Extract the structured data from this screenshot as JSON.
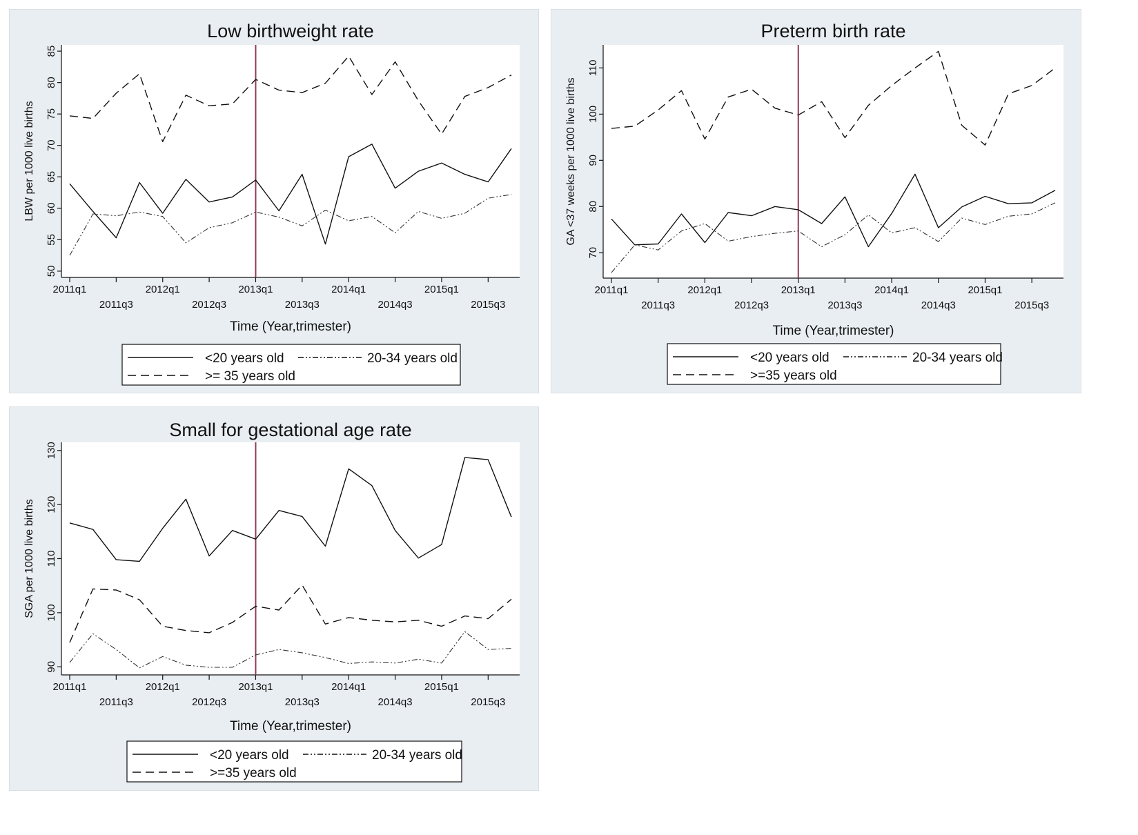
{
  "chart_data": [
    {
      "type": "line",
      "title": "Low birthweight rate",
      "xlabel": "Time (Year,trimester)",
      "ylabel": "LBW per 1000 live births",
      "xticks": [
        "2011q1",
        "2011q3",
        "2012q1",
        "2012q3",
        "2013q1",
        "2013q3",
        "2014q1",
        "2014q3",
        "2015q1",
        "2015q3"
      ],
      "yticks": [
        50,
        55,
        60,
        65,
        70,
        75,
        80,
        85
      ],
      "ylim": [
        49,
        86
      ],
      "intervention_x": 8,
      "x": [
        0,
        1,
        2,
        3,
        4,
        5,
        6,
        7,
        8,
        9,
        10,
        11,
        12,
        13,
        14,
        15,
        16,
        17,
        18,
        19
      ],
      "series": [
        {
          "name": "<20 years old",
          "style": "solid",
          "values": [
            63.9,
            59.5,
            55.3,
            64.1,
            59.2,
            64.6,
            61.0,
            61.8,
            64.5,
            59.6,
            65.4,
            54.3,
            68.2,
            70.2,
            63.2,
            65.9,
            67.2,
            65.4,
            64.2,
            69.5
          ]
        },
        {
          "name": "20-34 years old",
          "style": "dashdot",
          "values": [
            52.5,
            59.1,
            58.8,
            59.4,
            58.7,
            54.5,
            56.9,
            57.7,
            59.4,
            58.6,
            57.2,
            59.7,
            58.0,
            58.7,
            56.1,
            59.5,
            58.4,
            59.2,
            61.6,
            62.2
          ]
        },
        {
          "name": ">= 35 years old",
          "style": "dashed",
          "values": [
            74.7,
            74.3,
            78.3,
            81.4,
            70.6,
            78.0,
            76.3,
            76.6,
            80.5,
            78.8,
            78.4,
            79.9,
            84.2,
            78.1,
            83.3,
            77.1,
            71.8,
            77.8,
            79.2,
            81.2
          ]
        }
      ],
      "legend": {
        "entries": [
          "<20 years old",
          "20-34 years old",
          ">= 35 years old"
        ],
        "placement": "bottom"
      }
    },
    {
      "type": "line",
      "title": "Preterm birth rate",
      "xlabel": "Time (Year,trimester)",
      "ylabel": "GA <37 weeks per 1000 live births",
      "xticks": [
        "2011q1",
        "2011q3",
        "2012q1",
        "2012q3",
        "2013q1",
        "2013q3",
        "2014q1",
        "2014q3",
        "2015q1",
        "2015q3"
      ],
      "yticks": [
        70,
        80,
        90,
        100,
        110
      ],
      "ylim": [
        64.5,
        115
      ],
      "intervention_x": 8,
      "x": [
        0,
        1,
        2,
        3,
        4,
        5,
        6,
        7,
        8,
        9,
        10,
        11,
        12,
        13,
        14,
        15,
        16,
        17,
        18,
        19
      ],
      "series": [
        {
          "name": "<20 years old",
          "style": "solid",
          "values": [
            77.3,
            71.7,
            71.9,
            78.4,
            72.2,
            78.7,
            78.0,
            80.0,
            79.3,
            76.3,
            82.1,
            71.3,
            78.5,
            87.0,
            75.4,
            79.9,
            82.2,
            80.6,
            80.8,
            83.5
          ]
        },
        {
          "name": "20-34 years old",
          "style": "dashdot",
          "values": [
            65.7,
            71.7,
            70.6,
            74.7,
            76.3,
            72.5,
            73.5,
            74.2,
            74.7,
            71.3,
            73.9,
            78.2,
            74.3,
            75.4,
            72.4,
            77.5,
            76.1,
            77.9,
            78.4,
            80.8
          ]
        },
        {
          "name": ">=35 years old",
          "style": "dashed",
          "values": [
            96.9,
            97.4,
            100.9,
            105.1,
            94.6,
            103.7,
            105.4,
            101.3,
            99.8,
            102.7,
            94.9,
            101.9,
            106.2,
            110.0,
            113.6,
            97.6,
            93.3,
            104.4,
            106.2,
            110.0
          ]
        }
      ],
      "legend": {
        "entries": [
          "<20 years old",
          "20-34 years old",
          ">=35 years old"
        ],
        "placement": "bottom"
      }
    },
    {
      "type": "line",
      "title": "Small for gestational age rate",
      "xlabel": "Time (Year,trimester)",
      "ylabel": "SGA per 1000 live births",
      "xticks": [
        "2011q1",
        "2011q3",
        "2012q1",
        "2012q3",
        "2013q1",
        "2013q3",
        "2014q1",
        "2014q3",
        "2015q1",
        "2015q3"
      ],
      "yticks": [
        90,
        100,
        110,
        120,
        130
      ],
      "ylim": [
        88.5,
        131.5
      ],
      "intervention_x": 8,
      "x": [
        0,
        1,
        2,
        3,
        4,
        5,
        6,
        7,
        8,
        9,
        10,
        11,
        12,
        13,
        14,
        15,
        16,
        17,
        18,
        19
      ],
      "series": [
        {
          "name": "<20 years old",
          "style": "solid",
          "values": [
            116.6,
            115.4,
            109.8,
            109.5,
            115.6,
            121.0,
            110.5,
            115.2,
            113.6,
            118.9,
            117.8,
            112.3,
            126.6,
            123.5,
            115.2,
            110.1,
            112.6,
            128.7,
            128.3,
            117.7
          ]
        },
        {
          "name": "20-34 years old",
          "style": "dashdot",
          "values": [
            90.8,
            96.1,
            93.2,
            89.8,
            91.9,
            90.3,
            89.9,
            89.9,
            92.2,
            93.2,
            92.6,
            91.7,
            90.6,
            90.9,
            90.7,
            91.4,
            90.7,
            96.5,
            93.2,
            93.4
          ]
        },
        {
          "name": ">=35 years old",
          "style": "dashed",
          "values": [
            94.5,
            104.4,
            104.2,
            102.4,
            97.5,
            96.7,
            96.3,
            98.2,
            101.2,
            100.5,
            105.1,
            97.9,
            99.1,
            98.6,
            98.3,
            98.6,
            97.5,
            99.4,
            98.9,
            102.5
          ]
        }
      ],
      "legend": {
        "entries": [
          "<20 years old",
          "20-34 years old",
          ">=35 years old"
        ],
        "placement": "bottom"
      }
    }
  ]
}
